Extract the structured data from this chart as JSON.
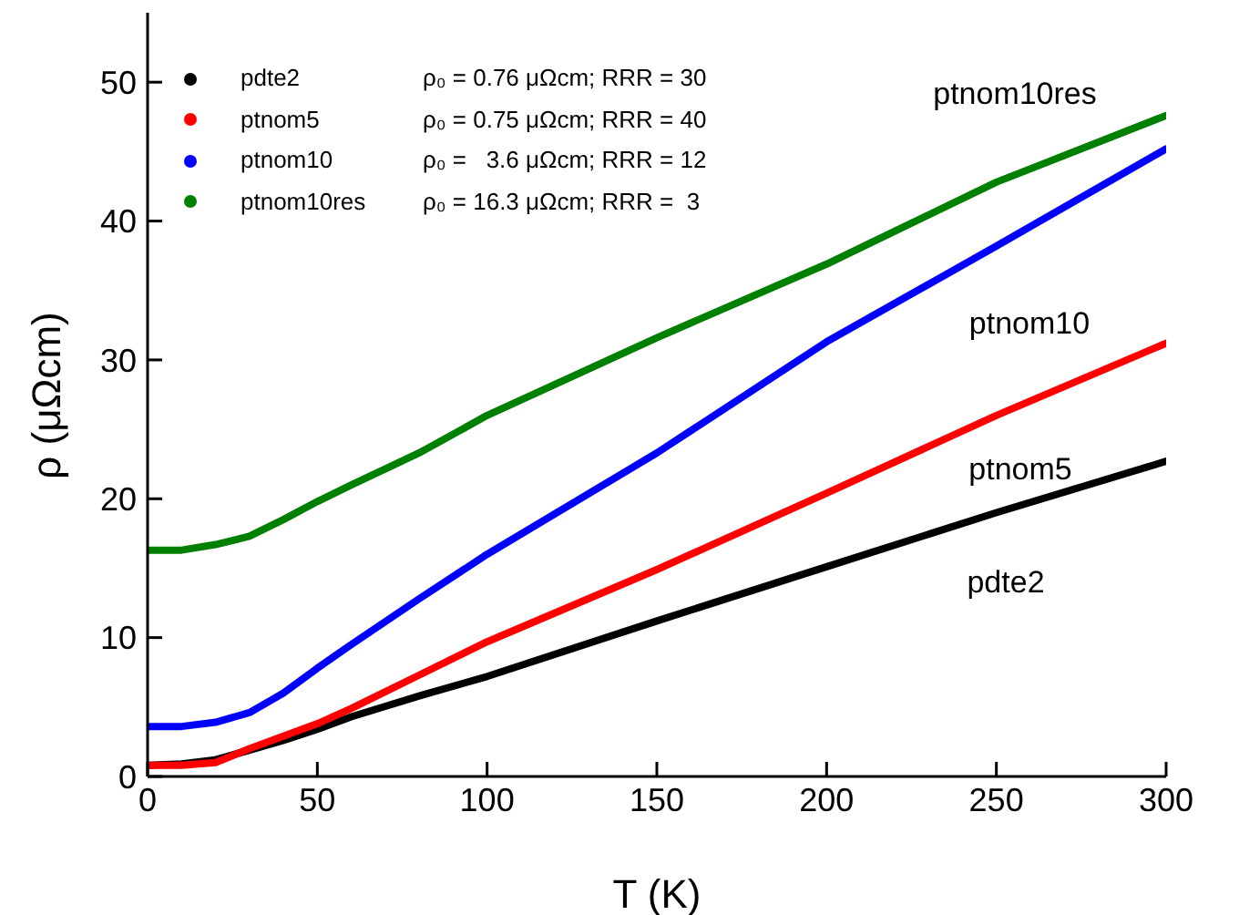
{
  "chart_data": {
    "type": "line",
    "xlabel": "T (K)",
    "ylabel": "ρ (μΩcm)",
    "xlim": [
      0,
      300
    ],
    "ylim": [
      0,
      55
    ],
    "xticks": [
      0,
      50,
      100,
      150,
      200,
      250,
      300
    ],
    "yticks": [
      0,
      10,
      20,
      30,
      40,
      50
    ],
    "legend": "top left",
    "marker": "none",
    "line_style": "solid",
    "x": [
      0,
      10,
      20,
      30,
      40,
      50,
      60,
      80,
      100,
      150,
      200,
      250,
      300
    ],
    "series": [
      {
        "name": "pdte2",
        "color": "#000000",
        "values": [
          0.8,
          0.9,
          1.2,
          1.9,
          2.6,
          3.4,
          4.3,
          5.8,
          7.2,
          11.2,
          15.1,
          19.0,
          22.7
        ]
      },
      {
        "name": "ptnom5",
        "color": "#ff0000",
        "values": [
          0.8,
          0.8,
          1.0,
          2.0,
          2.9,
          3.8,
          4.9,
          7.3,
          9.7,
          14.9,
          20.4,
          26.0,
          31.2
        ]
      },
      {
        "name": "ptnom10",
        "color": "#0000ff",
        "values": [
          3.6,
          3.6,
          3.9,
          4.6,
          6.0,
          7.8,
          9.5,
          12.8,
          16.0,
          23.3,
          31.3,
          38.2,
          45.2
        ]
      },
      {
        "name": "ptnom10res",
        "color": "#008000",
        "values": [
          16.3,
          16.3,
          16.7,
          17.3,
          18.5,
          19.8,
          21.0,
          23.3,
          26.0,
          31.6,
          36.9,
          42.8,
          47.6
        ]
      }
    ],
    "annotations": [
      "ρ₀ = 0.76 μΩcm; RRR = 30",
      "ρ₀ = 0.75 μΩcm; RRR = 40",
      "ρ₀ =   3.6 μΩcm; RRR = 12",
      "ρ₀ = 16.3 μΩcm; RRR =  3",
      "pdte2",
      "ptnom5",
      "ptnom10",
      "ptnom10res"
    ]
  }
}
